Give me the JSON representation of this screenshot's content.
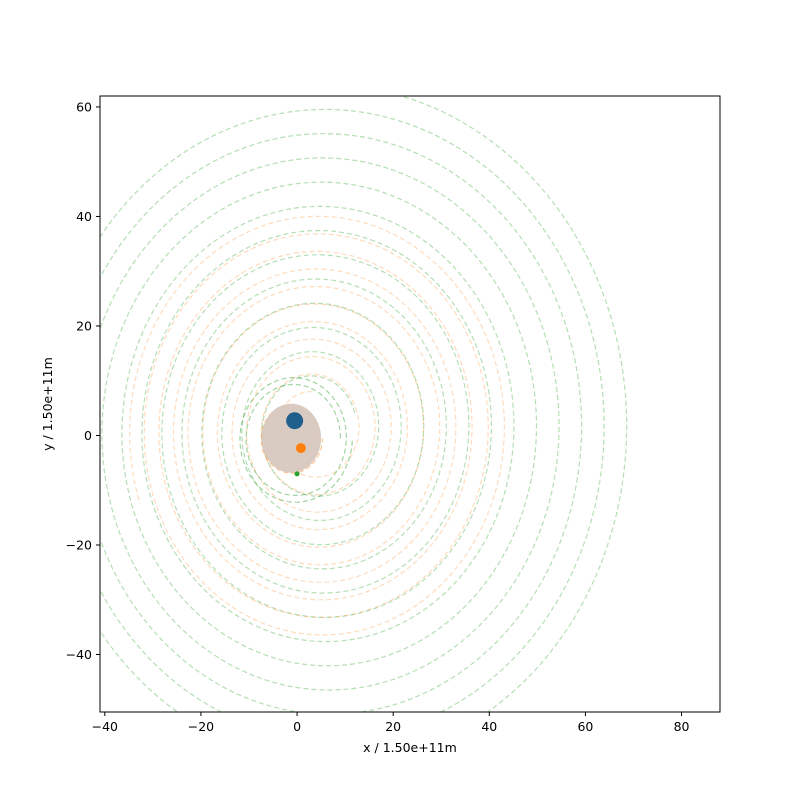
{
  "chart_data": {
    "type": "scatter",
    "title": "",
    "xlabel": "x / 1.50e+11m",
    "ylabel": "y / 1.50e+11m",
    "xlim": [
      -41,
      88
    ],
    "ylim": [
      -50.5,
      62
    ],
    "x_ticks": [
      -40,
      -20,
      0,
      20,
      40,
      60,
      80
    ],
    "y_ticks": [
      -40,
      -20,
      0,
      20,
      40,
      60
    ],
    "grid": false,
    "bodies": [
      {
        "x": -0.5,
        "y": 2.7,
        "color": "#1f5f8b"
      },
      {
        "x": 0.8,
        "y": -2.3,
        "color": "#ff7f0e"
      },
      {
        "x": 0.0,
        "y": -7.0,
        "color": "#2ca02c"
      }
    ],
    "central_blob": {
      "x": -1.2,
      "y": -0.5,
      "rx": 6.2,
      "ry": 6.3,
      "color": "#d8c8bf"
    },
    "trails": [
      {
        "color": "#2ca02c",
        "cx": 3,
        "cy": 1,
        "r_start": 9,
        "r_end": 63,
        "a_start": 0.35,
        "turns": 12.2,
        "drift": 0.06,
        "opacity": 0.35
      },
      {
        "color": "#ff7f0e",
        "cx": 3,
        "cy": 1,
        "r_start": 7,
        "r_end": 40,
        "a_start": 1.6,
        "turns": 10.3,
        "drift": 0.05,
        "opacity": 0.28
      },
      {
        "color": "#2ca02c",
        "cx": -0.5,
        "cy": -0.5,
        "r_start": 9.5,
        "r_end": 12,
        "a_start": 0.0,
        "turns": 2.0,
        "drift": 0.0,
        "opacity": 0.45
      },
      {
        "color": "#ff7f0e",
        "cx": -1.2,
        "cy": -0.5,
        "r_start": 5.5,
        "r_end": 6.5,
        "a_start": 0.0,
        "turns": 2.0,
        "drift": 0.0,
        "opacity": 0.45
      }
    ]
  }
}
